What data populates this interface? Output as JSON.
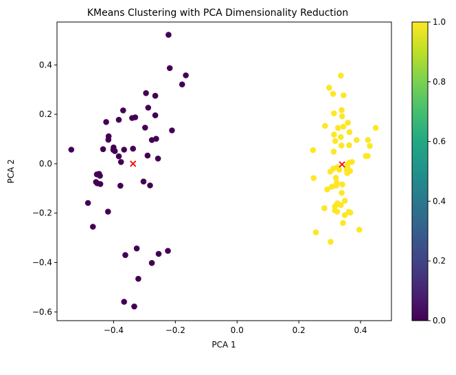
{
  "chart_data": {
    "type": "scatter",
    "title": "KMeans Clustering with PCA Dimensionality Reduction",
    "xlabel": "PCA 1",
    "ylabel": "PCA 2",
    "xlim": [
      -0.5833,
      0.5
    ],
    "ylim": [
      -0.6354,
      0.5738
    ],
    "xticks": [
      -0.4,
      -0.2,
      0.0,
      0.2,
      0.4
    ],
    "xtick_labels": [
      "−0.4",
      "−0.2",
      "0.0",
      "0.2",
      "0.4"
    ],
    "yticks": [
      -0.6,
      -0.4,
      -0.2,
      0.0,
      0.2,
      0.4
    ],
    "yticks_labels": [
      "−0.6",
      "−0.4",
      "−0.2",
      "0.0",
      "0.2",
      "0.4"
    ],
    "grid": false,
    "colormap": "viridis",
    "colorbar": {
      "range": [
        0.0,
        1.0
      ],
      "ticks": [
        0.0,
        0.2,
        0.4,
        0.6,
        0.8,
        1.0
      ],
      "tick_labels": [
        "0.0",
        "0.2",
        "0.4",
        "0.6",
        "0.8",
        "1.0"
      ],
      "low_color": "#440154",
      "high_color": "#fde725"
    },
    "series": [
      {
        "cluster": 0,
        "color": "#440154",
        "points": [
          [
            -0.222,
            0.522
          ],
          [
            -0.218,
            0.387
          ],
          [
            -0.166,
            0.358
          ],
          [
            -0.178,
            0.321
          ],
          [
            -0.295,
            0.286
          ],
          [
            -0.265,
            0.275
          ],
          [
            -0.369,
            0.216
          ],
          [
            -0.288,
            0.227
          ],
          [
            -0.265,
            0.196
          ],
          [
            -0.33,
            0.188
          ],
          [
            -0.34,
            0.185
          ],
          [
            -0.383,
            0.178
          ],
          [
            -0.424,
            0.169
          ],
          [
            -0.298,
            0.146
          ],
          [
            -0.211,
            0.135
          ],
          [
            -0.416,
            0.111
          ],
          [
            -0.417,
            0.097
          ],
          [
            -0.262,
            0.101
          ],
          [
            -0.276,
            0.096
          ],
          [
            -0.337,
            0.061
          ],
          [
            -0.366,
            0.057
          ],
          [
            -0.4,
            0.066
          ],
          [
            -0.434,
            0.059
          ],
          [
            -0.401,
            0.056
          ],
          [
            -0.396,
            0.051
          ],
          [
            -0.537,
            0.057
          ],
          [
            -0.29,
            0.033
          ],
          [
            -0.256,
            0.021
          ],
          [
            -0.383,
            0.03
          ],
          [
            -0.376,
            0.007
          ],
          [
            -0.447,
            -0.041
          ],
          [
            -0.454,
            -0.043
          ],
          [
            -0.444,
            -0.049
          ],
          [
            -0.457,
            -0.074
          ],
          [
            -0.303,
            -0.072
          ],
          [
            -0.443,
            -0.082
          ],
          [
            -0.453,
            -0.079
          ],
          [
            -0.282,
            -0.088
          ],
          [
            -0.378,
            -0.089
          ],
          [
            -0.418,
            -0.194
          ],
          [
            -0.483,
            -0.159
          ],
          [
            -0.467,
            -0.255
          ],
          [
            -0.325,
            -0.343
          ],
          [
            -0.362,
            -0.37
          ],
          [
            -0.254,
            -0.365
          ],
          [
            -0.224,
            -0.353
          ],
          [
            -0.276,
            -0.402
          ],
          [
            -0.32,
            -0.466
          ],
          [
            -0.366,
            -0.559
          ],
          [
            -0.333,
            -0.578
          ]
        ]
      },
      {
        "cluster": 1,
        "color": "#fde725",
        "points": [
          [
            0.336,
            0.357
          ],
          [
            0.298,
            0.308
          ],
          [
            0.345,
            0.277
          ],
          [
            0.311,
            0.283
          ],
          [
            0.339,
            0.217
          ],
          [
            0.34,
            0.192
          ],
          [
            0.314,
            0.204
          ],
          [
            0.449,
            0.145
          ],
          [
            0.285,
            0.153
          ],
          [
            0.327,
            0.145
          ],
          [
            0.359,
            0.166
          ],
          [
            0.314,
            0.118
          ],
          [
            0.344,
            0.15
          ],
          [
            0.364,
            0.128
          ],
          [
            0.424,
            0.096
          ],
          [
            0.387,
            0.096
          ],
          [
            0.336,
            0.108
          ],
          [
            0.318,
            0.092
          ],
          [
            0.43,
            0.072
          ],
          [
            0.363,
            0.075
          ],
          [
            0.338,
            0.074
          ],
          [
            0.313,
            0.049
          ],
          [
            0.246,
            0.055
          ],
          [
            0.417,
            0.031
          ],
          [
            0.423,
            0.031
          ],
          [
            0.372,
            0.007
          ],
          [
            0.362,
            0.004
          ],
          [
            0.358,
            -0.003
          ],
          [
            0.325,
            -0.014
          ],
          [
            0.357,
            -0.015
          ],
          [
            0.354,
            -0.022
          ],
          [
            0.312,
            -0.02
          ],
          [
            0.331,
            -0.024
          ],
          [
            0.302,
            -0.032
          ],
          [
            0.366,
            -0.029
          ],
          [
            0.357,
            -0.038
          ],
          [
            0.248,
            -0.058
          ],
          [
            0.32,
            -0.057
          ],
          [
            0.323,
            -0.078
          ],
          [
            0.341,
            -0.084
          ],
          [
            0.307,
            -0.093
          ],
          [
            0.321,
            -0.089
          ],
          [
            0.292,
            -0.104
          ],
          [
            0.339,
            -0.118
          ],
          [
            0.349,
            -0.15
          ],
          [
            0.325,
            -0.16
          ],
          [
            0.323,
            -0.165
          ],
          [
            0.336,
            -0.167
          ],
          [
            0.317,
            -0.173
          ],
          [
            0.283,
            -0.18
          ],
          [
            0.317,
            -0.189
          ],
          [
            0.324,
            -0.194
          ],
          [
            0.362,
            -0.195
          ],
          [
            0.367,
            -0.198
          ],
          [
            0.349,
            -0.208
          ],
          [
            0.343,
            -0.24
          ],
          [
            0.255,
            -0.278
          ],
          [
            0.396,
            -0.267
          ],
          [
            0.303,
            -0.316
          ]
        ]
      }
    ],
    "centroids": {
      "marker": "x",
      "color": "#ff0000",
      "points": [
        [
          -0.337,
          0.0
        ],
        [
          0.34,
          -0.003
        ]
      ]
    }
  }
}
